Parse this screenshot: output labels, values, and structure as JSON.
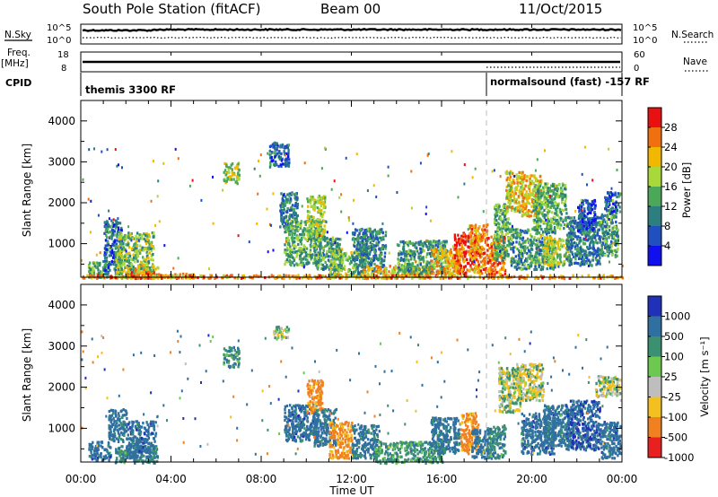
{
  "header": {
    "title": "South Pole Station (fitACF)",
    "beam": "Beam 00",
    "date": "11/Oct/2015"
  },
  "top_panels": {
    "nsky": {
      "left_label": "N.Sky",
      "right_label": "N.Search",
      "left_ticks": [
        "10^5",
        "10^0"
      ],
      "right_ticks": [
        "10^5",
        "10^0"
      ]
    },
    "freq": {
      "left_label": "Freq.",
      "left_unit": "[MHz]",
      "right_label": "Nave",
      "left_ticks": [
        "18",
        "8"
      ],
      "right_ticks": [
        "60",
        "0"
      ]
    },
    "cpid": {
      "label": "CPID",
      "segments": [
        {
          "label": "themis 3300 RF",
          "start_hour": 0,
          "end_hour": 18.0
        },
        {
          "label": "normalsound (fast) -157 RF",
          "start_hour": 18.0,
          "end_hour": 24
        }
      ]
    }
  },
  "x_axis": {
    "label": "Time UT",
    "ticks": [
      "00:00",
      "04:00",
      "08:00",
      "12:00",
      "16:00",
      "20:00",
      "00:00"
    ]
  },
  "power_panel": {
    "ylabel": "Slant Range [km]",
    "yticks": [
      "1000",
      "2000",
      "3000",
      "4000"
    ],
    "colorbar_label": "Power [dB]",
    "colorbar_ticks": [
      "4",
      "8",
      "12",
      "16",
      "20",
      "24",
      "28"
    ],
    "colors": [
      "#1010ee",
      "#2050c0",
      "#2d7f7f",
      "#4aa858",
      "#a8d83a",
      "#f2b800",
      "#f07010",
      "#e81010"
    ]
  },
  "velocity_panel": {
    "ylabel": "Slant Range [km]",
    "yticks": [
      "1000",
      "2000",
      "3000",
      "4000"
    ],
    "colorbar_label": "Velocity [m s⁻¹]",
    "colorbar_ticks": [
      "1000",
      "500",
      "100",
      "25",
      "-25",
      "-100",
      "-500",
      "-1000"
    ],
    "colors": [
      "#2030b8",
      "#3070a0",
      "#3a9070",
      "#6cc850",
      "#bebebe",
      "#f4c020",
      "#f08020",
      "#e82020"
    ]
  },
  "chart_data": [
    {
      "type": "heatmap",
      "title": "South Pole Station (fitACF) Beam 00 11/Oct/2015",
      "xlabel": "Time UT",
      "ylabel": "Slant Range [km]",
      "quantity": "Power [dB]",
      "xlim": [
        0,
        24
      ],
      "ylim": [
        180,
        4500
      ],
      "clim": [
        0,
        30
      ],
      "patches": [
        {
          "t": [
            0.3,
            1.2
          ],
          "r": [
            180,
            600
          ],
          "v": 14
        },
        {
          "t": [
            1.0,
            1.8
          ],
          "r": [
            300,
            1600
          ],
          "v": 8
        },
        {
          "t": [
            1.5,
            3.2
          ],
          "r": [
            180,
            1300
          ],
          "v": 16
        },
        {
          "t": [
            2.0,
            3.4
          ],
          "r": [
            180,
            450
          ],
          "v": 20
        },
        {
          "t": [
            2.2,
            3.2
          ],
          "r": [
            180,
            350
          ],
          "v": 26
        },
        {
          "t": [
            3.0,
            5.0
          ],
          "r": [
            180,
            300
          ],
          "v": 24
        },
        {
          "t": [
            6.3,
            7.0
          ],
          "r": [
            2500,
            3000
          ],
          "v": 18
        },
        {
          "t": [
            8.3,
            9.2
          ],
          "r": [
            2900,
            3500
          ],
          "v": 8
        },
        {
          "t": [
            8.8,
            9.6
          ],
          "r": [
            1400,
            2300
          ],
          "v": 10
        },
        {
          "t": [
            9.0,
            10.6
          ],
          "r": [
            500,
            1600
          ],
          "v": 14
        },
        {
          "t": [
            10.0,
            10.8
          ],
          "r": [
            1200,
            2200
          ],
          "v": 18
        },
        {
          "t": [
            10.3,
            11.5
          ],
          "r": [
            400,
            1200
          ],
          "v": 12
        },
        {
          "t": [
            11.0,
            12.6
          ],
          "r": [
            200,
            900
          ],
          "v": 16
        },
        {
          "t": [
            12.0,
            13.5
          ],
          "r": [
            300,
            1400
          ],
          "v": 10
        },
        {
          "t": [
            12.5,
            15.5
          ],
          "r": [
            180,
            500
          ],
          "v": 22
        },
        {
          "t": [
            14.0,
            16.2
          ],
          "r": [
            300,
            1100
          ],
          "v": 12
        },
        {
          "t": [
            15.5,
            16.8
          ],
          "r": [
            250,
            900
          ],
          "v": 22
        },
        {
          "t": [
            16.5,
            17.6
          ],
          "r": [
            300,
            1300
          ],
          "v": 28
        },
        {
          "t": [
            17.2,
            18.0
          ],
          "r": [
            300,
            1500
          ],
          "v": 24
        },
        {
          "t": [
            18.0,
            18.8
          ],
          "r": [
            250,
            1200
          ],
          "v": 26
        },
        {
          "t": [
            18.3,
            19.0
          ],
          "r": [
            600,
            2000
          ],
          "v": 14
        },
        {
          "t": [
            18.8,
            19.6
          ],
          "r": [
            1800,
            2800
          ],
          "v": 20
        },
        {
          "t": [
            19.5,
            20.4
          ],
          "r": [
            1700,
            2700
          ],
          "v": 22
        },
        {
          "t": [
            19.0,
            21.0
          ],
          "r": [
            400,
            1400
          ],
          "v": 12
        },
        {
          "t": [
            20.0,
            21.5
          ],
          "r": [
            1400,
            2500
          ],
          "v": 14
        },
        {
          "t": [
            20.5,
            21.6
          ],
          "r": [
            500,
            1200
          ],
          "v": 18
        },
        {
          "t": [
            21.5,
            23.0
          ],
          "r": [
            500,
            1700
          ],
          "v": 10
        },
        {
          "t": [
            22.0,
            22.8
          ],
          "r": [
            1300,
            2100
          ],
          "v": 6
        },
        {
          "t": [
            23.0,
            23.8
          ],
          "r": [
            700,
            1800
          ],
          "v": 12
        },
        {
          "t": [
            23.2,
            23.9
          ],
          "r": [
            1800,
            2300
          ],
          "v": 8
        },
        {
          "t": [
            0.0,
            24.0
          ],
          "r": [
            180,
            260
          ],
          "v": 24
        }
      ]
    },
    {
      "type": "heatmap",
      "title": "South Pole Station (fitACF) Beam 00 11/Oct/2015",
      "xlabel": "Time UT",
      "ylabel": "Slant Range [km]",
      "quantity": "Velocity [m s⁻¹]",
      "xlim": [
        0,
        24
      ],
      "ylim": [
        180,
        4500
      ],
      "clim": [
        -1000,
        1000
      ],
      "patches": [
        {
          "t": [
            0.3,
            1.3
          ],
          "r": [
            250,
            700
          ],
          "v": 300
        },
        {
          "t": [
            1.2,
            2.0
          ],
          "r": [
            700,
            1500
          ],
          "v": 200
        },
        {
          "t": [
            1.5,
            3.4
          ],
          "r": [
            180,
            600
          ],
          "v": 80
        },
        {
          "t": [
            2.0,
            3.3
          ],
          "r": [
            300,
            1200
          ],
          "v": 300
        },
        {
          "t": [
            6.3,
            7.0
          ],
          "r": [
            2500,
            3000
          ],
          "v": 60
        },
        {
          "t": [
            8.5,
            9.2
          ],
          "r": [
            3200,
            3500
          ],
          "v": 0
        },
        {
          "t": [
            9.0,
            10.5
          ],
          "r": [
            700,
            1600
          ],
          "v": 300
        },
        {
          "t": [
            10.0,
            10.7
          ],
          "r": [
            1400,
            2200
          ],
          "v": -200
        },
        {
          "t": [
            10.3,
            11.3
          ],
          "r": [
            600,
            1500
          ],
          "v": 200
        },
        {
          "t": [
            11.0,
            12.0
          ],
          "r": [
            300,
            1200
          ],
          "v": -150
        },
        {
          "t": [
            12.0,
            13.2
          ],
          "r": [
            300,
            1100
          ],
          "v": 150
        },
        {
          "t": [
            13.0,
            16.0
          ],
          "r": [
            180,
            700
          ],
          "v": 60
        },
        {
          "t": [
            15.5,
            16.8
          ],
          "r": [
            400,
            1300
          ],
          "v": 200
        },
        {
          "t": [
            16.8,
            17.6
          ],
          "r": [
            400,
            1400
          ],
          "v": -200
        },
        {
          "t": [
            17.3,
            18.2
          ],
          "r": [
            300,
            1000
          ],
          "v": 200
        },
        {
          "t": [
            18.0,
            18.8
          ],
          "r": [
            300,
            1100
          ],
          "v": 80
        },
        {
          "t": [
            18.5,
            19.5
          ],
          "r": [
            1400,
            2500
          ],
          "v": 0
        },
        {
          "t": [
            19.3,
            20.5
          ],
          "r": [
            1700,
            2600
          ],
          "v": -10
        },
        {
          "t": [
            19.5,
            21.0
          ],
          "r": [
            400,
            1400
          ],
          "v": 300
        },
        {
          "t": [
            20.5,
            21.8
          ],
          "r": [
            600,
            1600
          ],
          "v": 200
        },
        {
          "t": [
            21.5,
            23.0
          ],
          "r": [
            500,
            1700
          ],
          "v": 400
        },
        {
          "t": [
            22.8,
            23.9
          ],
          "r": [
            1800,
            2300
          ],
          "v": 0
        },
        {
          "t": [
            23.0,
            23.9
          ],
          "r": [
            300,
            1200
          ],
          "v": 300
        }
      ]
    }
  ]
}
